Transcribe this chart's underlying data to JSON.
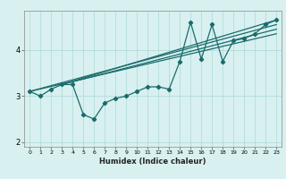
{
  "xlabel": "Humidex (Indice chaleur)",
  "ylabel": "",
  "background_color": "#d8f0f0",
  "grid_color": "#aed8d8",
  "line_color": "#1a6b6b",
  "xlim": [
    -0.5,
    23.5
  ],
  "ylim": [
    1.9,
    4.85
  ],
  "yticks": [
    2,
    3,
    4
  ],
  "xticks": [
    0,
    1,
    2,
    3,
    4,
    5,
    6,
    7,
    8,
    9,
    10,
    11,
    12,
    13,
    14,
    15,
    16,
    17,
    18,
    19,
    20,
    21,
    22,
    23
  ],
  "scatter_x": [
    0,
    1,
    2,
    3,
    4,
    5,
    6,
    7,
    8,
    9,
    10,
    11,
    12,
    13,
    14,
    15,
    16,
    17,
    18,
    19,
    20,
    21,
    22,
    23
  ],
  "scatter_y": [
    3.1,
    3.0,
    3.15,
    3.25,
    3.25,
    2.6,
    2.5,
    2.85,
    2.95,
    3.0,
    3.1,
    3.2,
    3.2,
    3.15,
    3.75,
    4.6,
    3.8,
    4.55,
    3.75,
    4.2,
    4.25,
    4.35,
    4.55,
    4.65
  ],
  "line1_x": [
    0,
    23
  ],
  "line1_y": [
    3.1,
    4.55
  ],
  "line2_x": [
    3,
    23
  ],
  "line2_y": [
    3.25,
    4.65
  ],
  "line3_x": [
    3,
    23
  ],
  "line3_y": [
    3.25,
    4.45
  ],
  "line4_x": [
    0,
    23
  ],
  "line4_y": [
    3.1,
    4.35
  ]
}
